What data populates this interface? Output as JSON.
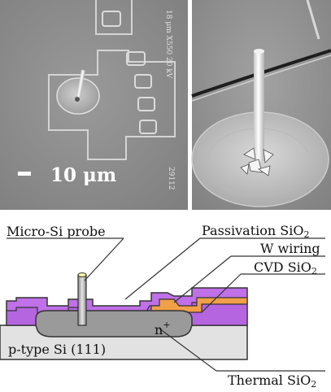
{
  "sem_left": {
    "scale_label": "10 μm",
    "imprint_vertical": "18 μm  X550  20 kV",
    "imprint_code": "29112"
  },
  "diagram": {
    "labels": {
      "micro_si_probe": "Micro-Si  probe",
      "passivation_prefix": "Passivation SiO",
      "passivation_sub": "2",
      "w_wiring": "W wiring",
      "cvd_prefix": "CVD SiO",
      "cvd_sub": "2",
      "n_plus_prefix": "n",
      "n_plus_sup": "+",
      "substrate": "p-type Si (111)",
      "thermal_prefix": "Thermal SiO",
      "thermal_sub": "2"
    }
  },
  "colors": {
    "purple": "#c070e8",
    "purple_dark": "#b060dc",
    "orange": "#f2a048",
    "nplus_gray": "#9a9a9a",
    "substrate": "#e2e2e2",
    "sem_bg": "#8f8f8f"
  }
}
